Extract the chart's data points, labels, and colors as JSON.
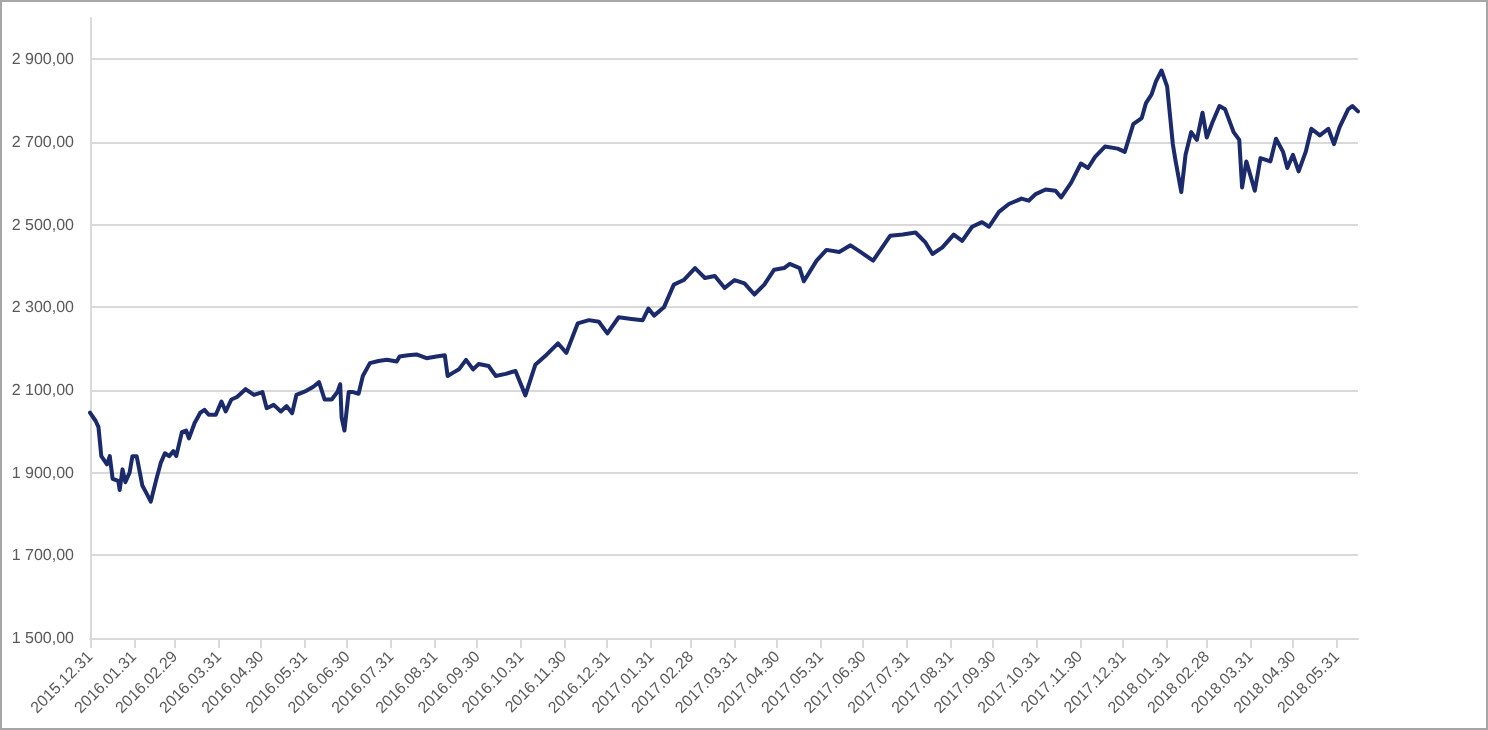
{
  "chart_data": {
    "type": "line",
    "x": [
      "2015-12-31",
      "2016-01-04",
      "2016-01-06",
      "2016-01-08",
      "2016-01-12",
      "2016-01-14",
      "2016-01-16",
      "2016-01-20",
      "2016-01-21",
      "2016-01-23",
      "2016-01-25",
      "2016-01-28",
      "2016-01-30",
      "2016-02-02",
      "2016-02-04",
      "2016-02-06",
      "2016-02-09",
      "2016-02-12",
      "2016-02-16",
      "2016-02-19",
      "2016-02-22",
      "2016-02-25",
      "2016-02-28",
      "2016-03-01",
      "2016-03-05",
      "2016-03-08",
      "2016-03-10",
      "2016-03-14",
      "2016-03-18",
      "2016-03-21",
      "2016-03-24",
      "2016-03-29",
      "2016-04-02",
      "2016-04-05",
      "2016-04-09",
      "2016-04-13",
      "2016-04-19",
      "2016-04-25",
      "2016-05-01",
      "2016-05-04",
      "2016-05-09",
      "2016-05-14",
      "2016-05-18",
      "2016-05-22",
      "2016-05-25",
      "2016-06-01",
      "2016-06-06",
      "2016-06-10",
      "2016-06-14",
      "2016-06-19",
      "2016-06-23",
      "2016-06-25",
      "2016-06-26",
      "2016-06-28",
      "2016-07-01",
      "2016-07-04",
      "2016-07-08",
      "2016-07-11",
      "2016-07-16",
      "2016-07-22",
      "2016-07-28",
      "2016-08-04",
      "2016-08-06",
      "2016-08-12",
      "2016-08-18",
      "2016-08-25",
      "2016-09-01",
      "2016-09-07",
      "2016-09-09",
      "2016-09-13",
      "2016-09-17",
      "2016-09-22",
      "2016-09-27",
      "2016-10-01",
      "2016-10-08",
      "2016-10-13",
      "2016-10-20",
      "2016-10-27",
      "2016-11-03",
      "2016-11-10",
      "2016-11-17",
      "2016-11-26",
      "2016-12-02",
      "2016-12-10",
      "2016-12-18",
      "2016-12-25",
      "2016-12-31",
      "2017-01-08",
      "2017-01-17",
      "2017-01-25",
      "2017-01-29",
      "2017-02-02",
      "2017-02-09",
      "2017-02-16",
      "2017-02-23",
      "2017-03-03",
      "2017-03-10",
      "2017-03-17",
      "2017-03-24",
      "2017-03-31",
      "2017-04-07",
      "2017-04-14",
      "2017-04-21",
      "2017-04-28",
      "2017-05-05",
      "2017-05-09",
      "2017-05-16",
      "2017-05-19",
      "2017-05-28",
      "2017-06-04",
      "2017-06-13",
      "2017-06-21",
      "2017-06-28",
      "2017-07-07",
      "2017-07-19",
      "2017-07-28",
      "2017-08-06",
      "2017-08-13",
      "2017-08-18",
      "2017-08-25",
      "2017-09-02",
      "2017-09-08",
      "2017-09-15",
      "2017-09-22",
      "2017-09-27",
      "2017-10-04",
      "2017-10-11",
      "2017-10-20",
      "2017-10-25",
      "2017-10-30",
      "2017-11-06",
      "2017-11-13",
      "2017-11-17",
      "2017-11-24",
      "2017-12-01",
      "2017-12-06",
      "2017-12-11",
      "2017-12-18",
      "2017-12-27",
      "2018-01-01",
      "2018-01-07",
      "2018-01-13",
      "2018-01-16",
      "2018-01-20",
      "2018-01-23",
      "2018-01-27",
      "2018-01-31",
      "2018-02-04",
      "2018-02-06",
      "2018-02-10",
      "2018-02-13",
      "2018-02-17",
      "2018-02-21",
      "2018-02-25",
      "2018-02-28",
      "2018-03-04",
      "2018-03-09",
      "2018-03-13",
      "2018-03-19",
      "2018-03-23",
      "2018-03-25",
      "2018-03-28",
      "2018-04-01",
      "2018-04-03",
      "2018-04-07",
      "2018-04-14",
      "2018-04-18",
      "2018-04-23",
      "2018-04-26",
      "2018-04-30",
      "2018-05-04",
      "2018-05-09",
      "2018-05-13",
      "2018-05-19",
      "2018-05-25",
      "2018-05-29",
      "2018-06-02",
      "2018-06-08",
      "2018-06-11",
      "2018-06-15"
    ],
    "series": [
      {
        "color": "#1b2a6b",
        "values": [
          2045,
          2025,
          2010,
          1940,
          1920,
          1940,
          1885,
          1880,
          1858,
          1908,
          1877,
          1900,
          1940,
          1940,
          1905,
          1869,
          1850,
          1830,
          1885,
          1923,
          1947,
          1940,
          1952,
          1940,
          1998,
          2002,
          1983,
          2020,
          2045,
          2052,
          2040,
          2040,
          2072,
          2048,
          2077,
          2083,
          2102,
          2088,
          2095,
          2056,
          2064,
          2048,
          2061,
          2044,
          2088,
          2098,
          2108,
          2119,
          2077,
          2077,
          2095,
          2114,
          2033,
          2002,
          2095,
          2095,
          2091,
          2134,
          2165,
          2170,
          2173,
          2169,
          2181,
          2184,
          2186,
          2177,
          2181,
          2184,
          2134,
          2142,
          2150,
          2173,
          2150,
          2163,
          2158,
          2134,
          2139,
          2146,
          2087,
          2161,
          2182,
          2213,
          2190,
          2261,
          2269,
          2265,
          2237,
          2276,
          2272,
          2269,
          2297,
          2280,
          2300,
          2355,
          2366,
          2395,
          2371,
          2376,
          2347,
          2366,
          2358,
          2331,
          2355,
          2391,
          2395,
          2405,
          2395,
          2363,
          2413,
          2439,
          2434,
          2450,
          2434,
          2413,
          2473,
          2476,
          2481,
          2457,
          2429,
          2445,
          2476,
          2461,
          2495,
          2506,
          2495,
          2531,
          2550,
          2563,
          2558,
          2574,
          2585,
          2582,
          2566,
          2601,
          2648,
          2637,
          2664,
          2689,
          2684,
          2676,
          2743,
          2758,
          2794,
          2815,
          2846,
          2873,
          2834,
          2695,
          2653,
          2579,
          2669,
          2724,
          2705,
          2771,
          2711,
          2747,
          2787,
          2779,
          2724,
          2705,
          2590,
          2653,
          2606,
          2582,
          2661,
          2653,
          2708,
          2676,
          2637,
          2669,
          2629,
          2676,
          2732,
          2716,
          2732,
          2695,
          2736,
          2779,
          2787,
          2774
        ]
      }
    ],
    "xlim": [
      "2015-12-31",
      "2018-06-15"
    ],
    "xticks": [
      {
        "value": "2015-12-31",
        "label": "2015.12.31"
      },
      {
        "value": "2016-01-31",
        "label": "2016.01.31"
      },
      {
        "value": "2016-02-29",
        "label": "2016.02.29"
      },
      {
        "value": "2016-03-31",
        "label": "2016.03.31"
      },
      {
        "value": "2016-04-30",
        "label": "2016.04.30"
      },
      {
        "value": "2016-05-31",
        "label": "2016.05.31"
      },
      {
        "value": "2016-06-30",
        "label": "2016.06.30"
      },
      {
        "value": "2016-07-31",
        "label": "2016.07.31"
      },
      {
        "value": "2016-08-31",
        "label": "2016.08.31"
      },
      {
        "value": "2016-09-30",
        "label": "2016.09.30"
      },
      {
        "value": "2016-10-31",
        "label": "2016.10.31"
      },
      {
        "value": "2016-11-30",
        "label": "2016.11.30"
      },
      {
        "value": "2016-12-31",
        "label": "2016.12.31"
      },
      {
        "value": "2017-01-31",
        "label": "2017.01.31"
      },
      {
        "value": "2017-02-28",
        "label": "2017.02.28"
      },
      {
        "value": "2017-03-31",
        "label": "2017.03.31"
      },
      {
        "value": "2017-04-30",
        "label": "2017.04.30"
      },
      {
        "value": "2017-05-31",
        "label": "2017.05.31"
      },
      {
        "value": "2017-06-30",
        "label": "2017.06.30"
      },
      {
        "value": "2017-07-31",
        "label": "2017.07.31"
      },
      {
        "value": "2017-08-31",
        "label": "2017.08.31"
      },
      {
        "value": "2017-09-30",
        "label": "2017.09.30"
      },
      {
        "value": "2017-10-31",
        "label": "2017.10.31"
      },
      {
        "value": "2017-11-30",
        "label": "2017.11.30"
      },
      {
        "value": "2017-12-31",
        "label": "2017.12.31"
      },
      {
        "value": "2018-01-31",
        "label": "2018.01.31"
      },
      {
        "value": "2018-02-28",
        "label": "2018.02.28"
      },
      {
        "value": "2018-03-31",
        "label": "2018.03.31"
      },
      {
        "value": "2018-04-30",
        "label": "2018.04.30"
      },
      {
        "value": "2018-05-31",
        "label": "2018.05.31"
      }
    ],
    "ylim": [
      1500,
      3000
    ],
    "yticks": [
      {
        "value": 1500,
        "label": "1 500,00"
      },
      {
        "value": 1700,
        "label": "1 700,00"
      },
      {
        "value": 1900,
        "label": "1 900,00"
      },
      {
        "value": 2100,
        "label": "2 100,00"
      },
      {
        "value": 2300,
        "label": "2 300,00"
      },
      {
        "value": 2500,
        "label": "2 500,00"
      },
      {
        "value": 2700,
        "label": "2 700,00"
      },
      {
        "value": 2900,
        "label": "2 900,00"
      }
    ],
    "grid": "y",
    "marker": "none",
    "line_style": "solid"
  }
}
